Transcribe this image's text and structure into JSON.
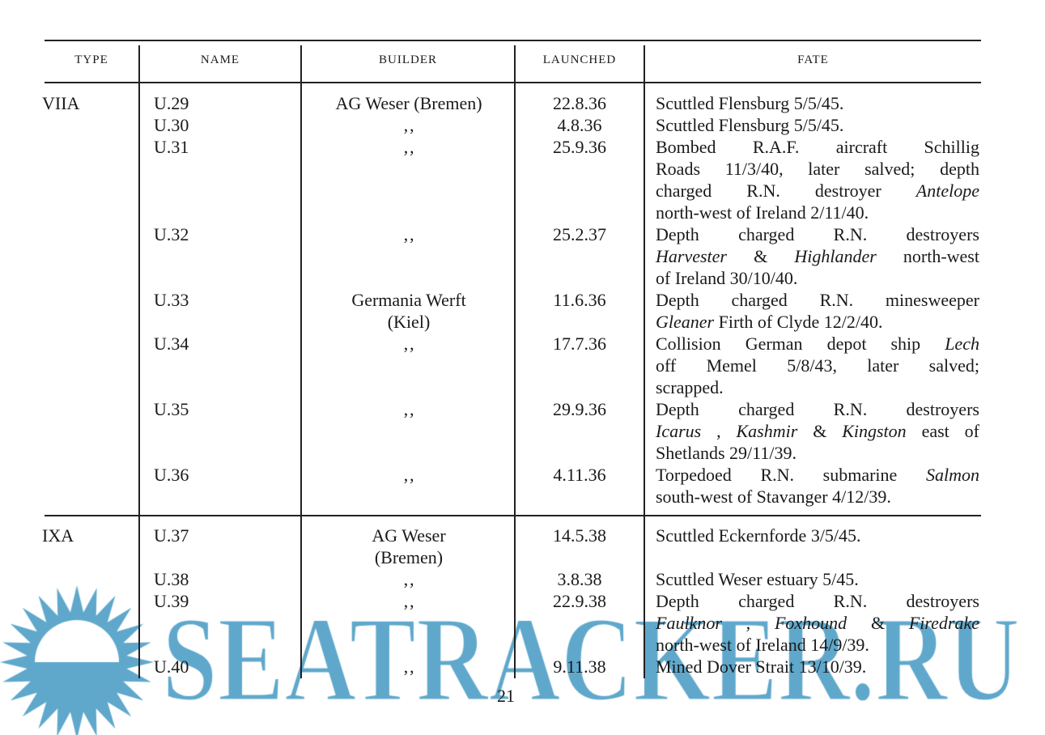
{
  "headers": {
    "type": "TYPE",
    "name": "NAME",
    "builder": "BUILDER",
    "launched": "LAUNCHED",
    "fate": "FATE"
  },
  "rows": [
    {
      "type": "VIIA",
      "name": "U.29",
      "builder": [
        "AG Weser (Bremen)"
      ],
      "launched": "22.8.36",
      "fate": [
        [
          {
            "t": "Scuttled Flensburg 5/5/45."
          }
        ]
      ]
    },
    {
      "type": "",
      "name": "U.30",
      "builder": [
        "‚‚"
      ],
      "launched": "4.8.36",
      "fate": [
        [
          {
            "t": "Scuttled Flensburg 5/5/45."
          }
        ]
      ]
    },
    {
      "type": "",
      "name": "U.31",
      "builder": [
        "‚‚"
      ],
      "launched": "25.9.36",
      "fate": [
        [
          {
            "t": "Bombed R.A.F. aircraft Schillig"
          }
        ],
        [
          {
            "t": "Roads 11/3/40, later salved; depth"
          }
        ],
        [
          {
            "t": "charged R.N. destroyer "
          },
          {
            "t": "Antelope",
            "i": true
          }
        ],
        [
          {
            "t": "north-west of Ireland 2/11/40."
          }
        ]
      ]
    },
    {
      "type": "",
      "name": "U.32",
      "builder": [
        "‚‚"
      ],
      "launched": "25.2.37",
      "fate": [
        [
          {
            "t": "Depth charged R.N. destroyers"
          }
        ],
        [
          {
            "t": "Harvester",
            "i": true
          },
          {
            "t": " & "
          },
          {
            "t": "Highlander",
            "i": true
          },
          {
            "t": " north-west"
          }
        ],
        [
          {
            "t": "of Ireland 30/10/40."
          }
        ]
      ]
    },
    {
      "type": "",
      "name": "U.33",
      "builder": [
        "Germania Werft",
        "(Kiel)"
      ],
      "launched": "11.6.36",
      "fate": [
        [
          {
            "t": "Depth charged R.N. minesweeper"
          }
        ],
        [
          {
            "t": "Gleaner",
            "i": true
          },
          {
            "t": " Firth of Clyde 12/2/40."
          }
        ]
      ]
    },
    {
      "type": "",
      "name": "U.34",
      "builder": [
        "‚‚"
      ],
      "launched": "17.7.36",
      "fate": [
        [
          {
            "t": "Collision German depot ship "
          },
          {
            "t": "Lech",
            "i": true
          }
        ],
        [
          {
            "t": "off Memel 5/8/43, later salved;"
          }
        ],
        [
          {
            "t": "scrapped."
          }
        ]
      ]
    },
    {
      "type": "",
      "name": "U.35",
      "builder": [
        "‚‚"
      ],
      "launched": "29.9.36",
      "fate": [
        [
          {
            "t": "Depth charged R.N. destroyers"
          }
        ],
        [
          {
            "t": "Icarus",
            "i": true
          },
          {
            "t": ", "
          },
          {
            "t": "Kashmir",
            "i": true
          },
          {
            "t": " & "
          },
          {
            "t": "Kingston",
            "i": true
          },
          {
            "t": " east of"
          }
        ],
        [
          {
            "t": "Shetlands 29/11/39."
          }
        ]
      ]
    },
    {
      "type": "",
      "name": "U.36",
      "builder": [
        "‚‚"
      ],
      "launched": "4.11.36",
      "fate": [
        [
          {
            "t": "Torpedoed R.N. submarine "
          },
          {
            "t": "Salmon",
            "i": true
          }
        ],
        [
          {
            "t": "south-west of Stavanger 4/12/39."
          }
        ]
      ]
    },
    {
      "type": "IXA",
      "name": "U.37",
      "builder": [
        "AG Weser",
        "(Bremen)"
      ],
      "launched": "14.5.38",
      "fate": [
        [
          {
            "t": "Scuttled Eckernforde 3/5/45."
          }
        ]
      ]
    },
    {
      "type": "",
      "name": "U.38",
      "builder": [
        "‚‚"
      ],
      "launched": "3.8.38",
      "fate": [
        [
          {
            "t": "Scuttled Weser estuary 5/45."
          }
        ]
      ]
    },
    {
      "type": "",
      "name": "U.39",
      "builder": [
        "‚‚"
      ],
      "launched": "22.9.38",
      "fate": [
        [
          {
            "t": "Depth charged R.N. destroyers"
          }
        ],
        [
          {
            "t": "Faulknor",
            "i": true
          },
          {
            "t": ", "
          },
          {
            "t": "Foxhound",
            "i": true
          },
          {
            "t": " & "
          },
          {
            "t": "Firedrake",
            "i": true
          }
        ],
        [
          {
            "t": "north-west of Ireland 14/9/39."
          }
        ]
      ]
    },
    {
      "type": "",
      "name": "U.40",
      "builder": [
        "‚‚"
      ],
      "launched": "9.11.38",
      "fate": [
        [
          {
            "t": "Mined Dover Strait 13/10/39."
          }
        ]
      ]
    }
  ],
  "page_number": "21",
  "watermark": {
    "text": "SEATRACKER.RU",
    "color": "#5fa8cc"
  }
}
